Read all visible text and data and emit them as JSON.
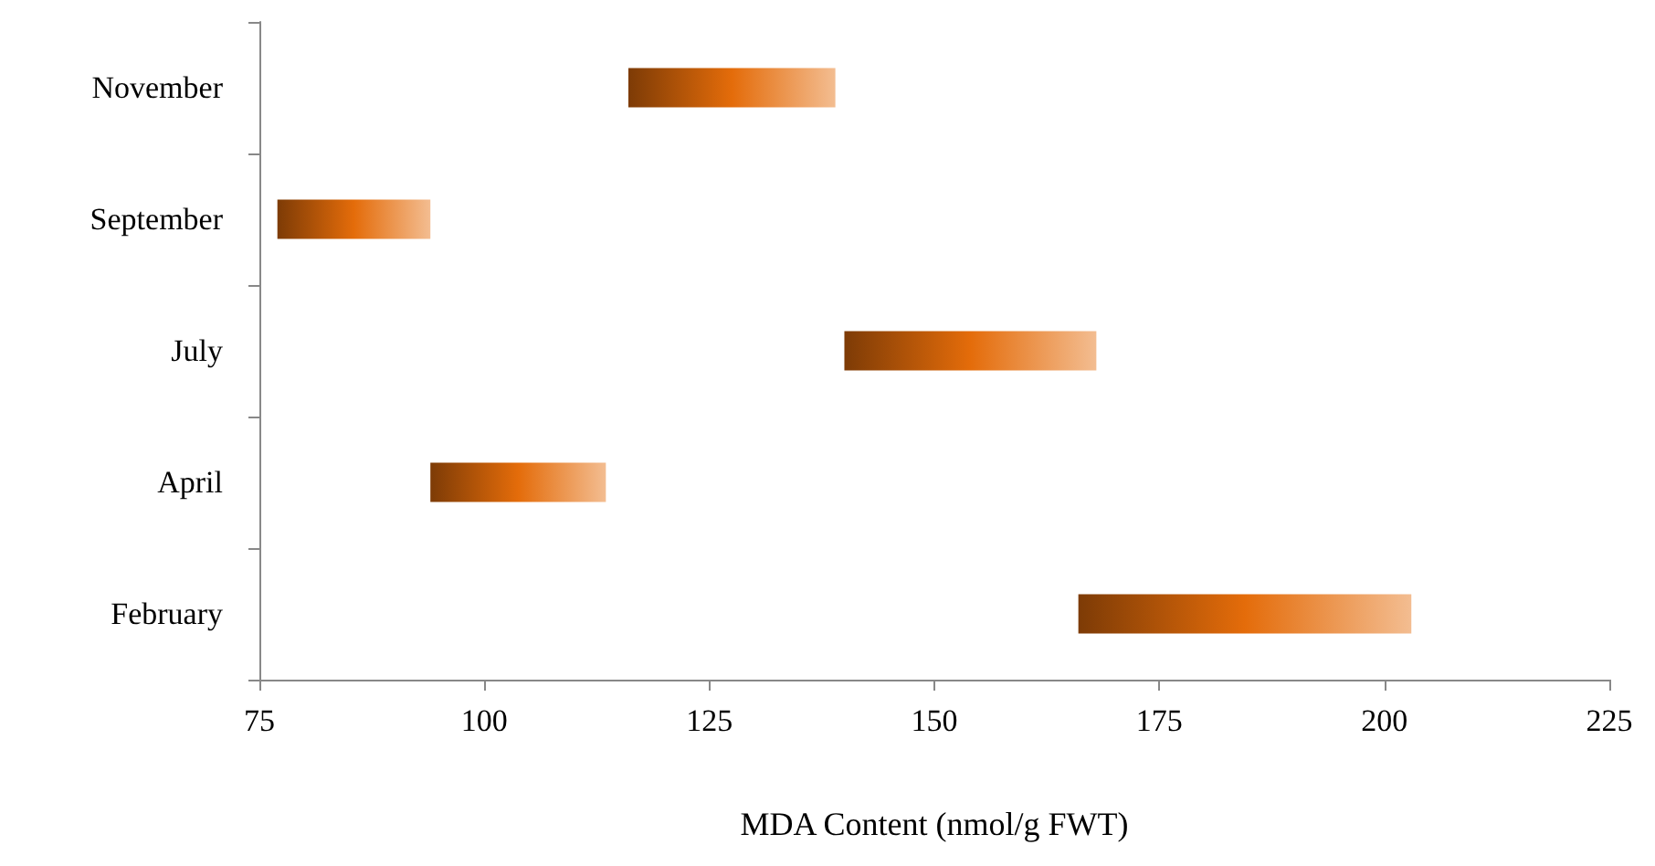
{
  "chart_data": {
    "type": "bar",
    "orientation": "horizontal",
    "categories": [
      "November",
      "September",
      "July",
      "April",
      "February"
    ],
    "base": [
      116,
      77,
      140,
      94,
      166
    ],
    "values": [
      23,
      17,
      28,
      19.5,
      37
    ],
    "color": "#e46c0a",
    "xlabel": "MDA Content (nmol/g FWT)",
    "xlim": [
      75,
      225
    ],
    "xticks": [
      75,
      100,
      125,
      150,
      175,
      200,
      225
    ],
    "grid": false
  }
}
